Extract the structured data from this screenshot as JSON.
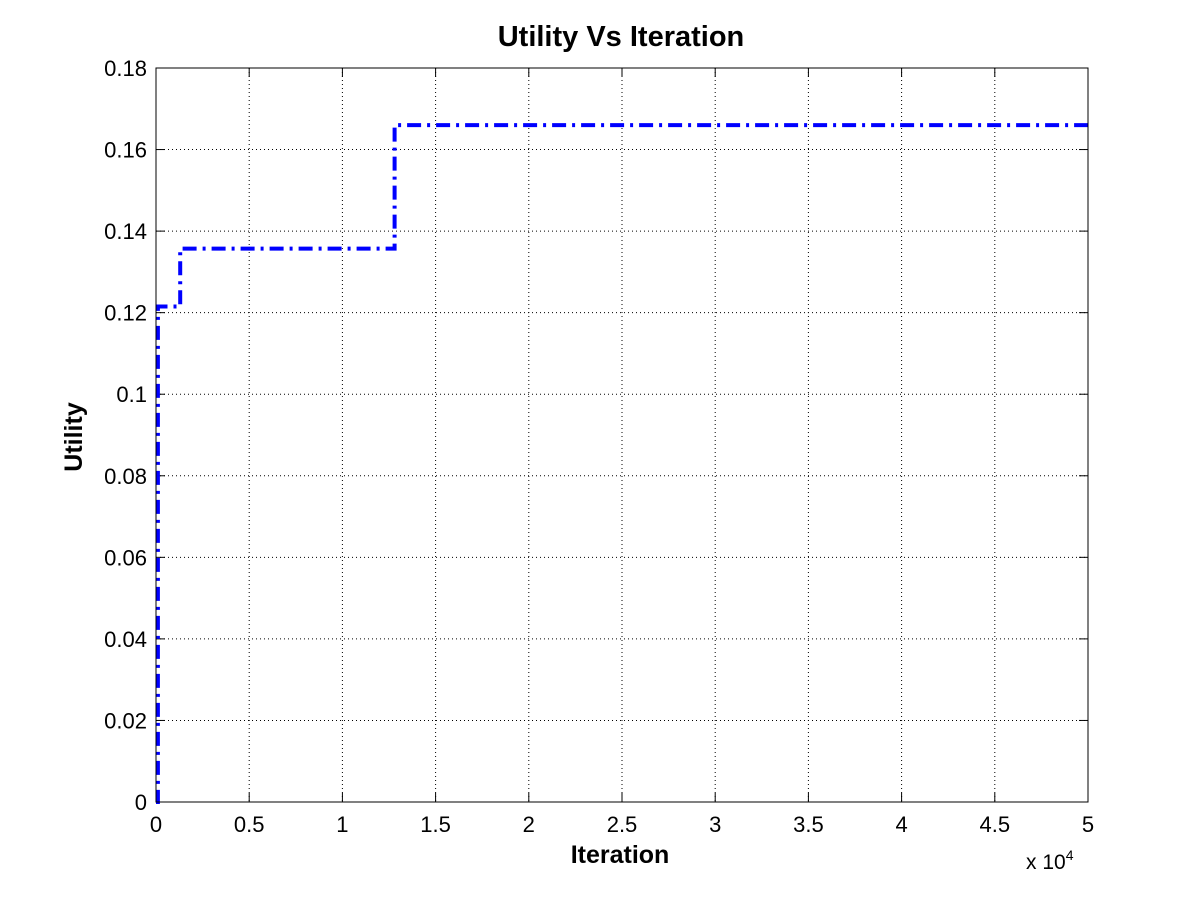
{
  "chart_data": {
    "type": "line",
    "title": "Utility Vs Iteration",
    "xlabel": "Iteration",
    "ylabel": "Utility",
    "x_multiplier_label": "x 10",
    "x_multiplier_exponent": "4",
    "xlim": [
      0,
      5
    ],
    "ylim": [
      0,
      0.18
    ],
    "xticks": [
      "0",
      "0.5",
      "1",
      "1.5",
      "2",
      "2.5",
      "3",
      "3.5",
      "4",
      "4.5",
      "5"
    ],
    "yticks": [
      "0",
      "0.02",
      "0.04",
      "0.06",
      "0.08",
      "0.1",
      "0.12",
      "0.14",
      "0.16",
      "0.18"
    ],
    "grid": true,
    "line_style": "dash-dot",
    "series": [
      {
        "color": "#0000ff",
        "x": [
          0,
          0.01,
          0.01,
          0.13,
          0.13,
          1.28,
          1.28,
          5.0
        ],
        "y": [
          0,
          0,
          0.1215,
          0.1215,
          0.1357,
          0.1357,
          0.166,
          0.166
        ]
      }
    ]
  }
}
